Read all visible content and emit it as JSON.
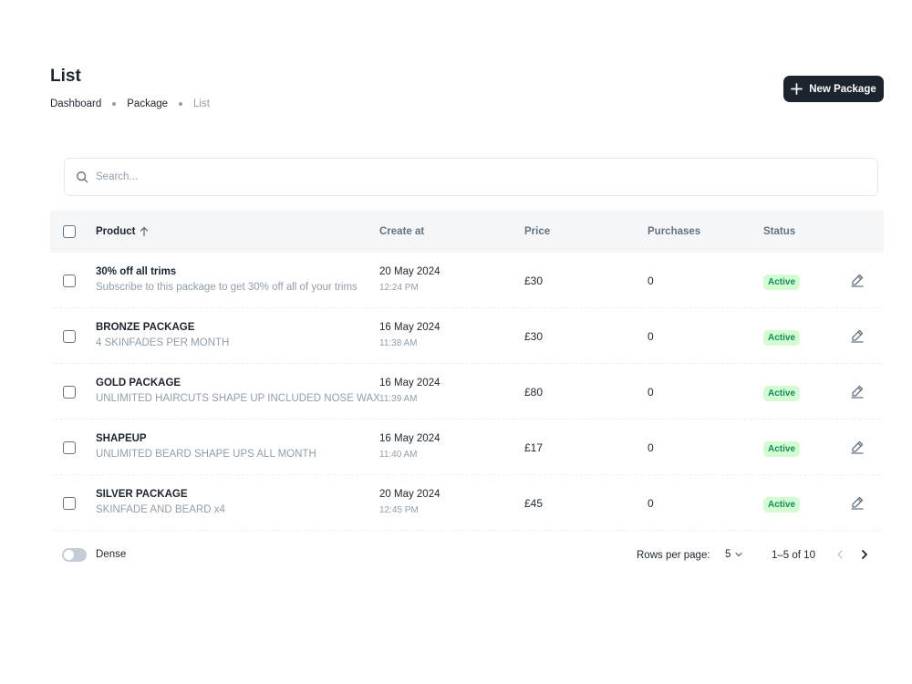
{
  "header": {
    "title": "List",
    "breadcrumbs": [
      "Dashboard",
      "Package",
      "List"
    ],
    "new_button_label": "New Package"
  },
  "search": {
    "placeholder": "Search..."
  },
  "table": {
    "columns": {
      "product": "Product",
      "create_at": "Create at",
      "price": "Price",
      "purchases": "Purchases",
      "status": "Status"
    },
    "sort": {
      "column": "product",
      "direction": "ascending"
    },
    "rows": [
      {
        "name": "30% off all trims",
        "description": "Subscribe to this package to get 30% off all of your trims",
        "date": "20 May 2024",
        "time": "12:24 PM",
        "price": "£30",
        "purchases": "0",
        "status": "Active"
      },
      {
        "name": "BRONZE PACKAGE",
        "description": "4 SKINFADES PER MONTH",
        "date": "16 May 2024",
        "time": "11:38 AM",
        "price": "£30",
        "purchases": "0",
        "status": "Active"
      },
      {
        "name": "GOLD PACKAGE",
        "description": "UNLIMITED HAIRCUTS SHAPE UP INCLUDED NOSE WAX",
        "date": "16 May 2024",
        "time": "11:39 AM",
        "price": "£80",
        "purchases": "0",
        "status": "Active"
      },
      {
        "name": "SHAPEUP",
        "description": "UNLIMITED BEARD SHAPE UPS ALL MONTH",
        "date": "16 May 2024",
        "time": "11:40 AM",
        "price": "£17",
        "purchases": "0",
        "status": "Active"
      },
      {
        "name": "SILVER PACKAGE",
        "description": "SKINFADE AND BEARD x4",
        "date": "20 May 2024",
        "time": "12:45 PM",
        "price": "£45",
        "purchases": "0",
        "status": "Active"
      }
    ]
  },
  "footer": {
    "dense_label": "Dense",
    "dense_enabled": false,
    "rows_per_page_label": "Rows per page:",
    "rows_per_page_value": "5",
    "range_text": "1–5 of 10"
  },
  "colors": {
    "primary_dark": "#1c252e",
    "success_bg": "#d3fcd2",
    "success_text": "#118d57",
    "muted": "#919eab"
  },
  "icons": {
    "add": "plus-icon",
    "search": "search-icon",
    "sort": "arrow-up-icon",
    "edit": "pencil-icon",
    "select": "chevron-down-icon",
    "prev": "chevron-left-icon",
    "next": "chevron-right-icon"
  }
}
